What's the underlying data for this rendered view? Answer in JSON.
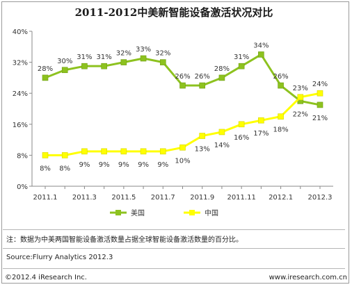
{
  "chart_data": {
    "type": "line",
    "title": "2011-2012中美新智能设备激活状况对比",
    "x": [
      "2011.1",
      "2011.2",
      "2011.3",
      "2011.4",
      "2011.5",
      "2011.6",
      "2011.7",
      "2011.8",
      "2011.9",
      "2011.10",
      "2011.11",
      "2011.12",
      "2012.1",
      "2012.2",
      "2012.3"
    ],
    "x_tick_labels": [
      "2011.1",
      "2011.3",
      "2011.5",
      "2011.7",
      "2011.9",
      "2011.11",
      "2012.1",
      "2012.3"
    ],
    "y_tick_labels": [
      "0%",
      "8%",
      "16%",
      "24%",
      "32%",
      "40%"
    ],
    "ylim": [
      0,
      40
    ],
    "grid": false,
    "legend_position": "bottom",
    "series": [
      {
        "name": "美国",
        "color": "#8dc21f",
        "values": [
          28,
          30,
          31,
          31,
          32,
          33,
          32,
          26,
          26,
          28,
          31,
          34,
          26,
          22,
          21
        ],
        "labels": [
          "28%",
          "30%",
          "31%",
          "31%",
          "32%",
          "33%",
          "32%",
          "26%",
          "26%",
          "28%",
          "31%",
          "34%",
          "26%",
          "22%",
          "21%"
        ]
      },
      {
        "name": "中国",
        "color": "#ffff00",
        "values": [
          8,
          8,
          9,
          9,
          9,
          9,
          9,
          10,
          13,
          14,
          16,
          17,
          18,
          23,
          24
        ],
        "labels": [
          "8%",
          "8%",
          "9%",
          "9%",
          "9%",
          "9%",
          "9%",
          "10%",
          "13%",
          "14%",
          "16%",
          "17%",
          "18%",
          "23%",
          "24%"
        ]
      }
    ]
  },
  "footer": {
    "note": "注：数据为中美两国智能设备激活数量占据全球智能设备激活数量的百分比。",
    "source": "Source:Flurry Analytics 2012.3",
    "copyright": "©2012.4 iResearch Inc.",
    "website": "www.iresearch.com.cn"
  }
}
